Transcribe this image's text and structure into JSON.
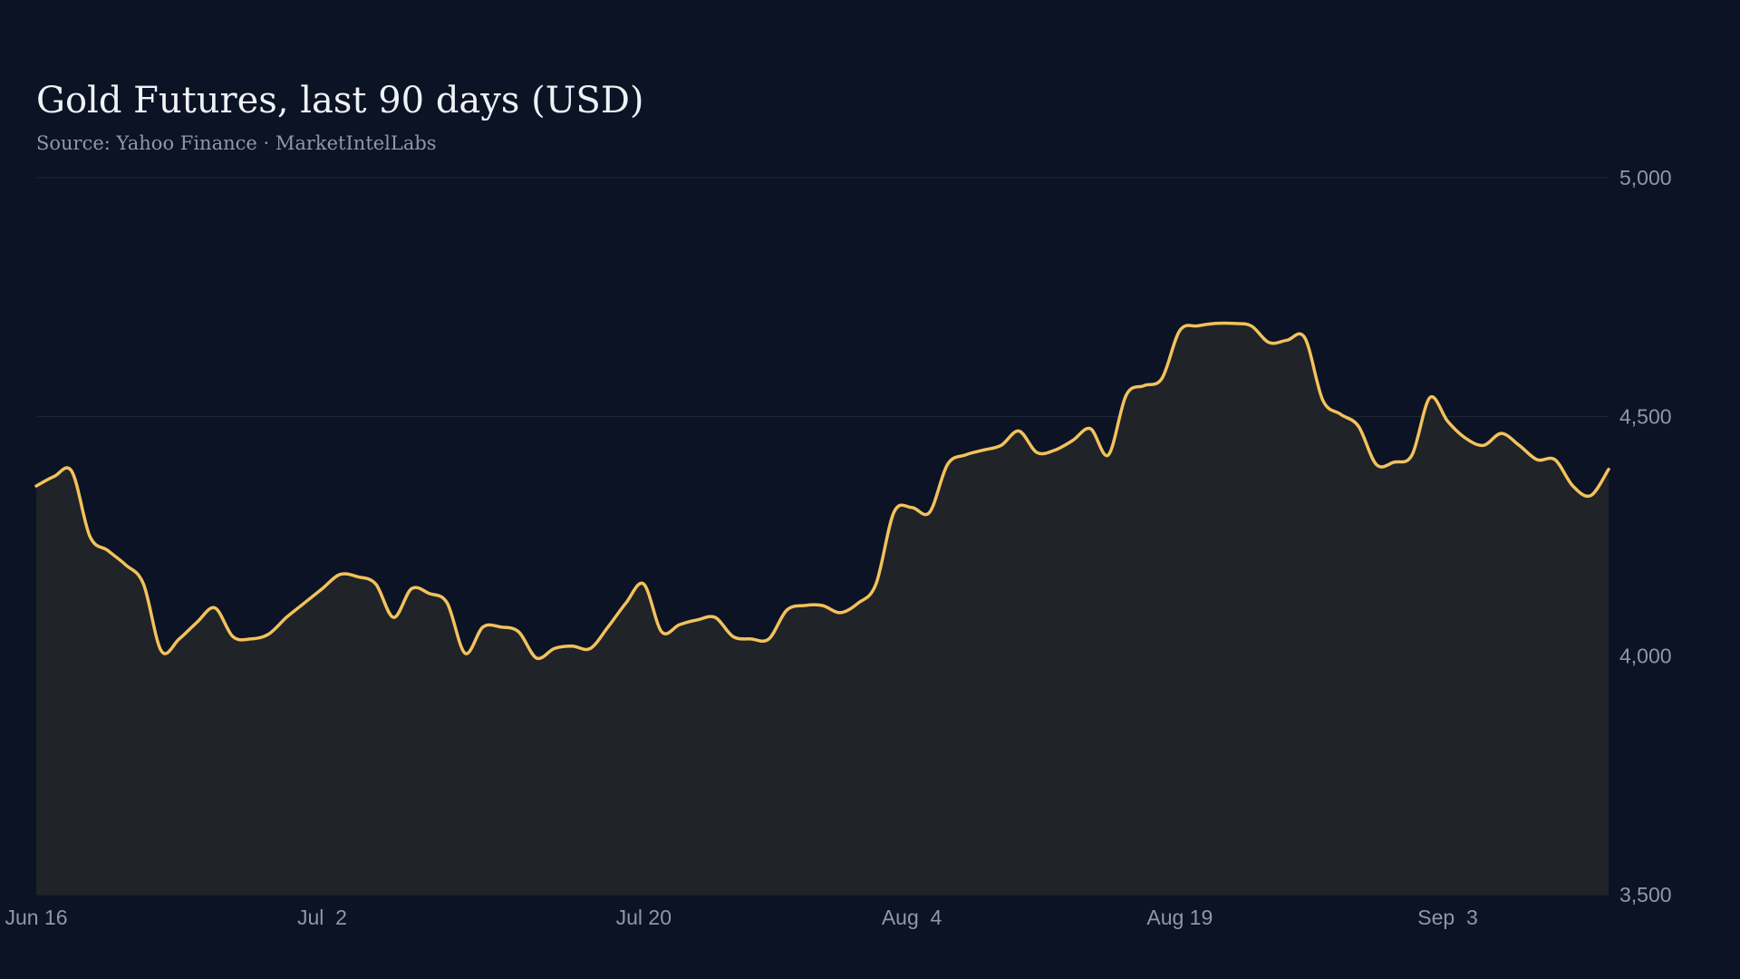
{
  "chart_data": {
    "type": "area",
    "title": "Gold Futures, last 90 days (USD)",
    "subtitle": "Source: Yahoo Finance · MarketIntelLabs",
    "xlabel": "",
    "ylabel": "",
    "x_range": [
      "Jun 16",
      "Sep 12"
    ],
    "ylim": [
      3500,
      5000
    ],
    "y_ticks": [
      3500,
      4000,
      4500,
      5000
    ],
    "y_tick_labels": [
      "3,500",
      "4,000",
      "4,500",
      "5,000"
    ],
    "y_axis_position": "right",
    "x_ticks": [
      {
        "date": "Jun 16",
        "label": "Jun 16"
      },
      {
        "date": "Jul 2",
        "label": "Jul  2"
      },
      {
        "date": "Jul 20",
        "label": "Jul 20"
      },
      {
        "date": "Aug 4",
        "label": "Aug  4"
      },
      {
        "date": "Aug 19",
        "label": "Aug 19"
      },
      {
        "date": "Sep 3",
        "label": "Sep  3"
      }
    ],
    "grid": true,
    "legend": "none",
    "line_color": "#f2c25c",
    "fill_color": "#202327",
    "grid_color": "#1f2a36",
    "series": [
      {
        "x": [
          "Jun 16",
          "Jun 17",
          "Jun 18",
          "Jun 19",
          "Jun 20",
          "Jun 21",
          "Jun 22",
          "Jun 23",
          "Jun 24",
          "Jun 25",
          "Jun 26",
          "Jun 27",
          "Jun 28",
          "Jun 29",
          "Jun 30",
          "Jul 1",
          "Jul 2",
          "Jul 3",
          "Jul 4",
          "Jul 5",
          "Jul 6",
          "Jul 7",
          "Jul 8",
          "Jul 9",
          "Jul 10",
          "Jul 11",
          "Jul 12",
          "Jul 13",
          "Jul 14",
          "Jul 15",
          "Jul 16",
          "Jul 17",
          "Jul 18",
          "Jul 19",
          "Jul 20",
          "Jul 21",
          "Jul 22",
          "Jul 23",
          "Jul 24",
          "Jul 25",
          "Jul 26",
          "Jul 27",
          "Jul 28",
          "Jul 29",
          "Jul 30",
          "Jul 31",
          "Aug 1",
          "Aug 2",
          "Aug 3",
          "Aug 4",
          "Aug 5",
          "Aug 6",
          "Aug 7",
          "Aug 8",
          "Aug 9",
          "Aug 10",
          "Aug 11",
          "Aug 12",
          "Aug 13",
          "Aug 14",
          "Aug 15",
          "Aug 16",
          "Aug 17",
          "Aug 18",
          "Aug 19",
          "Aug 20",
          "Aug 21",
          "Aug 22",
          "Aug 23",
          "Aug 24",
          "Aug 25",
          "Aug 26",
          "Aug 27",
          "Aug 28",
          "Aug 29",
          "Aug 30",
          "Aug 31",
          "Sep 1",
          "Sep 2",
          "Sep 3",
          "Sep 4",
          "Sep 5",
          "Sep 6",
          "Sep 7",
          "Sep 8",
          "Sep 9",
          "Sep 10",
          "Sep 11",
          "Sep 12"
        ],
        "values": [
          4355,
          4375,
          4385,
          4250,
          4220,
          4190,
          4150,
          4010,
          4035,
          4070,
          4100,
          4040,
          4035,
          4045,
          4080,
          4110,
          4140,
          4170,
          4165,
          4150,
          4080,
          4140,
          4130,
          4110,
          4005,
          4060,
          4060,
          4050,
          3995,
          4015,
          4020,
          4015,
          4060,
          4110,
          4150,
          4050,
          4065,
          4075,
          4080,
          4040,
          4035,
          4035,
          4095,
          4105,
          4105,
          4090,
          4110,
          4150,
          4300,
          4310,
          4300,
          4400,
          4420,
          4430,
          4440,
          4470,
          4425,
          4430,
          4450,
          4475,
          4420,
          4545,
          4565,
          4580,
          4680,
          4690,
          4695,
          4695,
          4690,
          4655,
          4660,
          4665,
          4535,
          4505,
          4480,
          4400,
          4405,
          4420,
          4540,
          4490,
          4455,
          4440,
          4465,
          4440,
          4410,
          4410,
          4355,
          4335,
          4390
        ]
      }
    ]
  }
}
